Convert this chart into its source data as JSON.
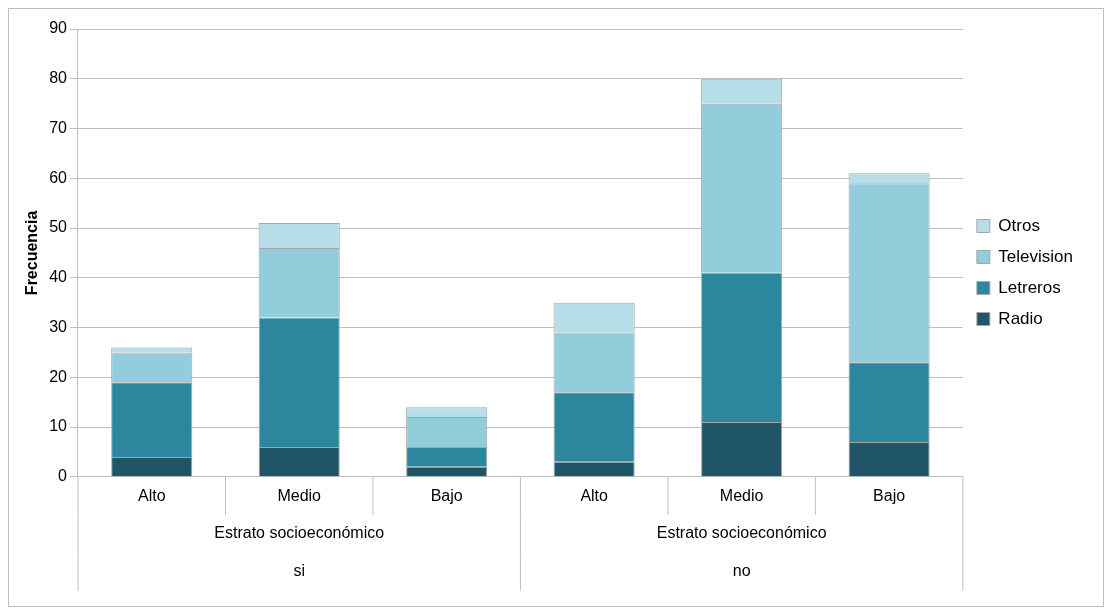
{
  "chart_data": {
    "type": "bar",
    "stacked": true,
    "ylabel": "Frecuencia",
    "categories": [
      "Alto",
      "Medio",
      "Bajo",
      "Alto",
      "Medio",
      "Bajo"
    ],
    "series": [
      {
        "name": "Radio",
        "color": "#1f5566",
        "values": [
          4,
          6,
          2,
          3,
          11,
          7
        ]
      },
      {
        "name": "Letreros",
        "color": "#2b869e",
        "values": [
          15,
          26,
          4,
          14,
          30,
          16
        ]
      },
      {
        "name": "Television",
        "color": "#92cddc",
        "values": [
          6,
          14,
          6,
          12,
          34,
          36
        ]
      },
      {
        "name": "Otros",
        "color": "#b7dee8",
        "values": [
          1,
          5,
          2,
          6,
          5,
          2
        ]
      }
    ],
    "ylim": [
      0,
      90
    ],
    "yticks": [
      0,
      10,
      20,
      30,
      40,
      50,
      60,
      70,
      80,
      90
    ],
    "grid": "y",
    "legend": "right",
    "annotations": [
      "Estrato socioeconómico",
      "Estrato socioeconómico",
      "si",
      "no"
    ]
  }
}
